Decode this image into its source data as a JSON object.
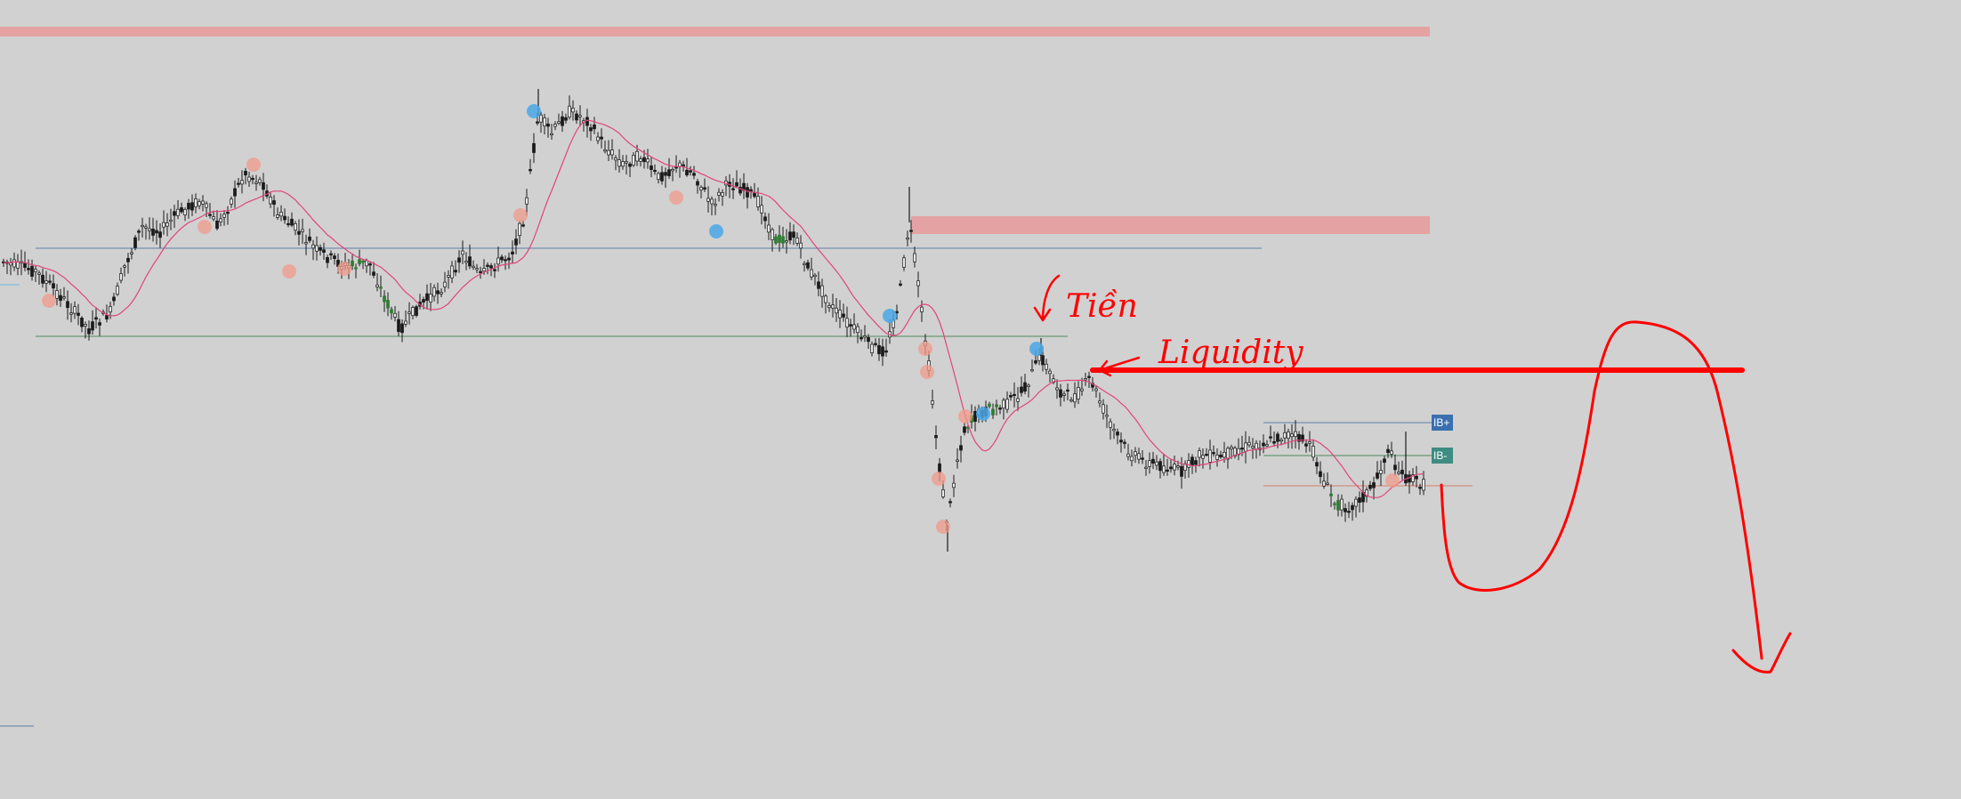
{
  "chart": {
    "background_color": "#d1d1d1",
    "candle_color": "#1a1a1a",
    "bull_highlight_color": "#2e7d32",
    "ma_color": "#e0457b",
    "level_line_color": "#5b7fa6",
    "green_line_color": "#4a8a5a",
    "supply_zone_color": "#e4a2a2",
    "swing_high_dot_color": "#4aa8e8",
    "swing_low_dot_color": "#f09a8a",
    "annotation_color": "#ff0000"
  },
  "annotations": {
    "word_1": "Tiền",
    "word_2": "Liquidity"
  },
  "ib_labels": {
    "upper": "IB+",
    "lower": "IB-",
    "upper_color": "#3a6fb0",
    "lower_color": "#3f8c82"
  }
}
